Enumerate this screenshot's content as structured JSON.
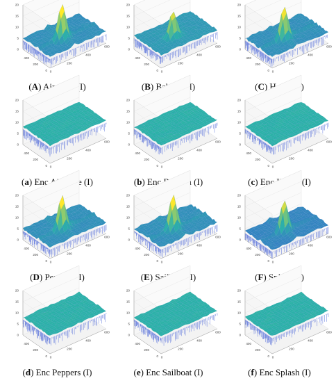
{
  "chart_data": [
    {
      "type": "surface",
      "tag": "A",
      "title": "Airplane (I)",
      "encrypted": false,
      "peaks": [
        [
          250,
          250,
          15
        ]
      ],
      "ridges": true,
      "base": 5,
      "zlim": [
        0,
        20
      ],
      "xlim": [
        0,
        600
      ],
      "ylim": [
        0,
        600
      ],
      "zticks": [
        "0",
        "5",
        "10",
        "15",
        "20"
      ],
      "xticks": [
        "0",
        "200",
        "400",
        "600"
      ],
      "yticks": [
        "0",
        "200",
        "400"
      ]
    },
    {
      "type": "surface",
      "tag": "B",
      "title": "Baboon (I)",
      "encrypted": false,
      "peaks": [
        [
          250,
          250,
          12
        ]
      ],
      "ridges": false,
      "base": 6,
      "zlim": [
        0,
        20
      ],
      "xlim": [
        0,
        600
      ],
      "ylim": [
        0,
        600
      ],
      "zticks": [
        "0",
        "5",
        "10",
        "15",
        "20"
      ],
      "xticks": [
        "0",
        "200",
        "400",
        "600"
      ],
      "yticks": [
        "0",
        "200",
        "400"
      ]
    },
    {
      "type": "surface",
      "tag": "C",
      "title": "House (I)",
      "encrypted": false,
      "peaks": [
        [
          250,
          250,
          13
        ]
      ],
      "ridges": true,
      "base": 5,
      "zlim": [
        0,
        20
      ],
      "xlim": [
        0,
        600
      ],
      "ylim": [
        0,
        600
      ],
      "zticks": [
        "0",
        "5",
        "10",
        "15",
        "20"
      ],
      "xticks": [
        "0",
        "200",
        "400",
        "600"
      ],
      "yticks": [
        "0",
        "200",
        "400"
      ]
    },
    {
      "type": "surface",
      "tag": "a",
      "title": "Enc Airplane (I)",
      "encrypted": true,
      "peaks": [],
      "ridges": false,
      "base": 8,
      "zlim": [
        0,
        20
      ],
      "xlim": [
        0,
        600
      ],
      "ylim": [
        0,
        600
      ],
      "zticks": [
        "0",
        "5",
        "10",
        "15",
        "20"
      ],
      "xticks": [
        "0",
        "200",
        "400",
        "600"
      ],
      "yticks": [
        "0",
        "200",
        "400"
      ]
    },
    {
      "type": "surface",
      "tag": "b",
      "title": "Enc Baboon (I)",
      "encrypted": true,
      "peaks": [],
      "ridges": false,
      "base": 8,
      "zlim": [
        0,
        20
      ],
      "xlim": [
        0,
        600
      ],
      "ylim": [
        0,
        600
      ],
      "zticks": [
        "0",
        "5",
        "10",
        "15",
        "20"
      ],
      "xticks": [
        "0",
        "200",
        "400",
        "600"
      ],
      "yticks": [
        "0",
        "200",
        "400"
      ]
    },
    {
      "type": "surface",
      "tag": "c",
      "title": "Enc House (I)",
      "encrypted": true,
      "peaks": [],
      "ridges": false,
      "base": 8,
      "zlim": [
        0,
        20
      ],
      "xlim": [
        0,
        600
      ],
      "ylim": [
        0,
        600
      ],
      "zticks": [
        "0",
        "5",
        "10",
        "15",
        "20"
      ],
      "xticks": [
        "0",
        "200",
        "400",
        "600"
      ],
      "yticks": [
        "0",
        "200",
        "400"
      ]
    },
    {
      "type": "surface",
      "tag": "D",
      "title": "Peppers (I)",
      "encrypted": false,
      "peaks": [
        [
          250,
          250,
          14
        ]
      ],
      "ridges": true,
      "base": 5,
      "zlim": [
        0,
        20
      ],
      "xlim": [
        0,
        600
      ],
      "ylim": [
        0,
        600
      ],
      "zticks": [
        "0",
        "5",
        "10",
        "15",
        "20"
      ],
      "xticks": [
        "0",
        "200",
        "400",
        "600"
      ],
      "yticks": [
        "0",
        "200",
        "400"
      ]
    },
    {
      "type": "surface",
      "tag": "E",
      "title": "Sailboat (I)",
      "encrypted": false,
      "peaks": [
        [
          250,
          250,
          14
        ]
      ],
      "ridges": true,
      "base": 5,
      "zlim": [
        0,
        20
      ],
      "xlim": [
        0,
        600
      ],
      "ylim": [
        0,
        600
      ],
      "zticks": [
        "0",
        "5",
        "10",
        "15",
        "20"
      ],
      "xticks": [
        "0",
        "200",
        "400",
        "600"
      ],
      "yticks": [
        "0",
        "200",
        "400"
      ]
    },
    {
      "type": "surface",
      "tag": "F",
      "title": "Splash (I)",
      "encrypted": false,
      "peaks": [
        [
          250,
          250,
          13
        ]
      ],
      "ridges": true,
      "base": 4,
      "zlim": [
        0,
        20
      ],
      "xlim": [
        0,
        600
      ],
      "ylim": [
        0,
        600
      ],
      "zticks": [
        "0",
        "5",
        "10",
        "15",
        "20"
      ],
      "xticks": [
        "0",
        "200",
        "400",
        "600"
      ],
      "yticks": [
        "0",
        "200",
        "400"
      ]
    },
    {
      "type": "surface",
      "tag": "d",
      "title": "Enc Peppers (I)",
      "encrypted": true,
      "peaks": [],
      "ridges": false,
      "base": 8,
      "zlim": [
        0,
        20
      ],
      "xlim": [
        0,
        600
      ],
      "ylim": [
        0,
        600
      ],
      "zticks": [
        "0",
        "5",
        "10",
        "15",
        "20"
      ],
      "xticks": [
        "0",
        "200",
        "400",
        "600"
      ],
      "yticks": [
        "0",
        "200",
        "400"
      ]
    },
    {
      "type": "surface",
      "tag": "e",
      "title": "Enc Sailboat (I)",
      "encrypted": true,
      "peaks": [],
      "ridges": false,
      "base": 8,
      "zlim": [
        0,
        20
      ],
      "xlim": [
        0,
        600
      ],
      "ylim": [
        0,
        600
      ],
      "zticks": [
        "0",
        "5",
        "10",
        "15",
        "20"
      ],
      "xticks": [
        "0",
        "200",
        "400",
        "600"
      ],
      "yticks": [
        "0",
        "200",
        "400"
      ]
    },
    {
      "type": "surface",
      "tag": "f",
      "title": "Enc Splash (I)",
      "encrypted": true,
      "peaks": [],
      "ridges": false,
      "base": 8,
      "zlim": [
        0,
        20
      ],
      "xlim": [
        0,
        600
      ],
      "ylim": [
        0,
        600
      ],
      "zticks": [
        "0",
        "5",
        "10",
        "15",
        "20"
      ],
      "xticks": [
        "0",
        "200",
        "400",
        "600"
      ],
      "yticks": [
        "0",
        "200",
        "400"
      ]
    }
  ],
  "colors": {
    "low": "#3d5bd6",
    "mid": "#2bb2a8",
    "high": "#e6e23a",
    "axis": "#9a9a9a",
    "grid": "#e3e3e3"
  }
}
